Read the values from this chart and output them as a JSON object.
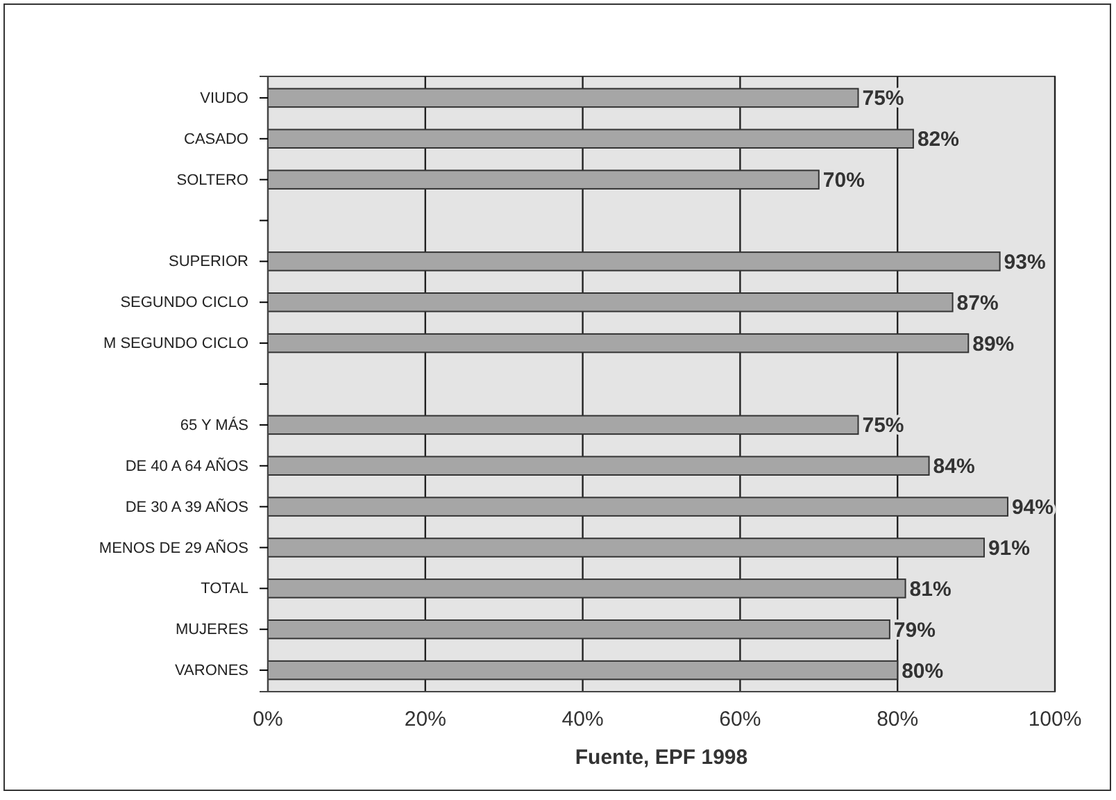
{
  "chart_data": {
    "type": "bar",
    "orientation": "horizontal",
    "xlabel": "Fuente, EPF 1998",
    "categories": [
      "VIUDO",
      "CASADO",
      "SOLTERO",
      null,
      "SUPERIOR",
      "SEGUNDO CICLO",
      "M SEGUNDO CICLO",
      null,
      "65 Y MÁS",
      "DE 40 A 64 AÑOS",
      "DE 30 A 39 AÑOS",
      "MENOS DE 29 AÑOS",
      "TOTAL",
      "MUJERES",
      "VARONES"
    ],
    "values": [
      75,
      82,
      70,
      null,
      93,
      87,
      89,
      null,
      75,
      84,
      94,
      91,
      81,
      79,
      80
    ],
    "value_labels": [
      "75%",
      "82%",
      "70%",
      null,
      "93%",
      "87%",
      "89%",
      null,
      "75%",
      "84%",
      "94%",
      "91%",
      "81%",
      "79%",
      "80%"
    ],
    "color": "#a6a6a6",
    "xlim": [
      0,
      100
    ],
    "xticks": [
      {
        "value": 0,
        "label": "0%"
      },
      {
        "value": 20,
        "label": "20%"
      },
      {
        "value": 40,
        "label": "40%"
      },
      {
        "value": 60,
        "label": "60%"
      },
      {
        "value": 80,
        "label": "80%"
      },
      {
        "value": 100,
        "label": "100%"
      }
    ],
    "grid": "x"
  }
}
